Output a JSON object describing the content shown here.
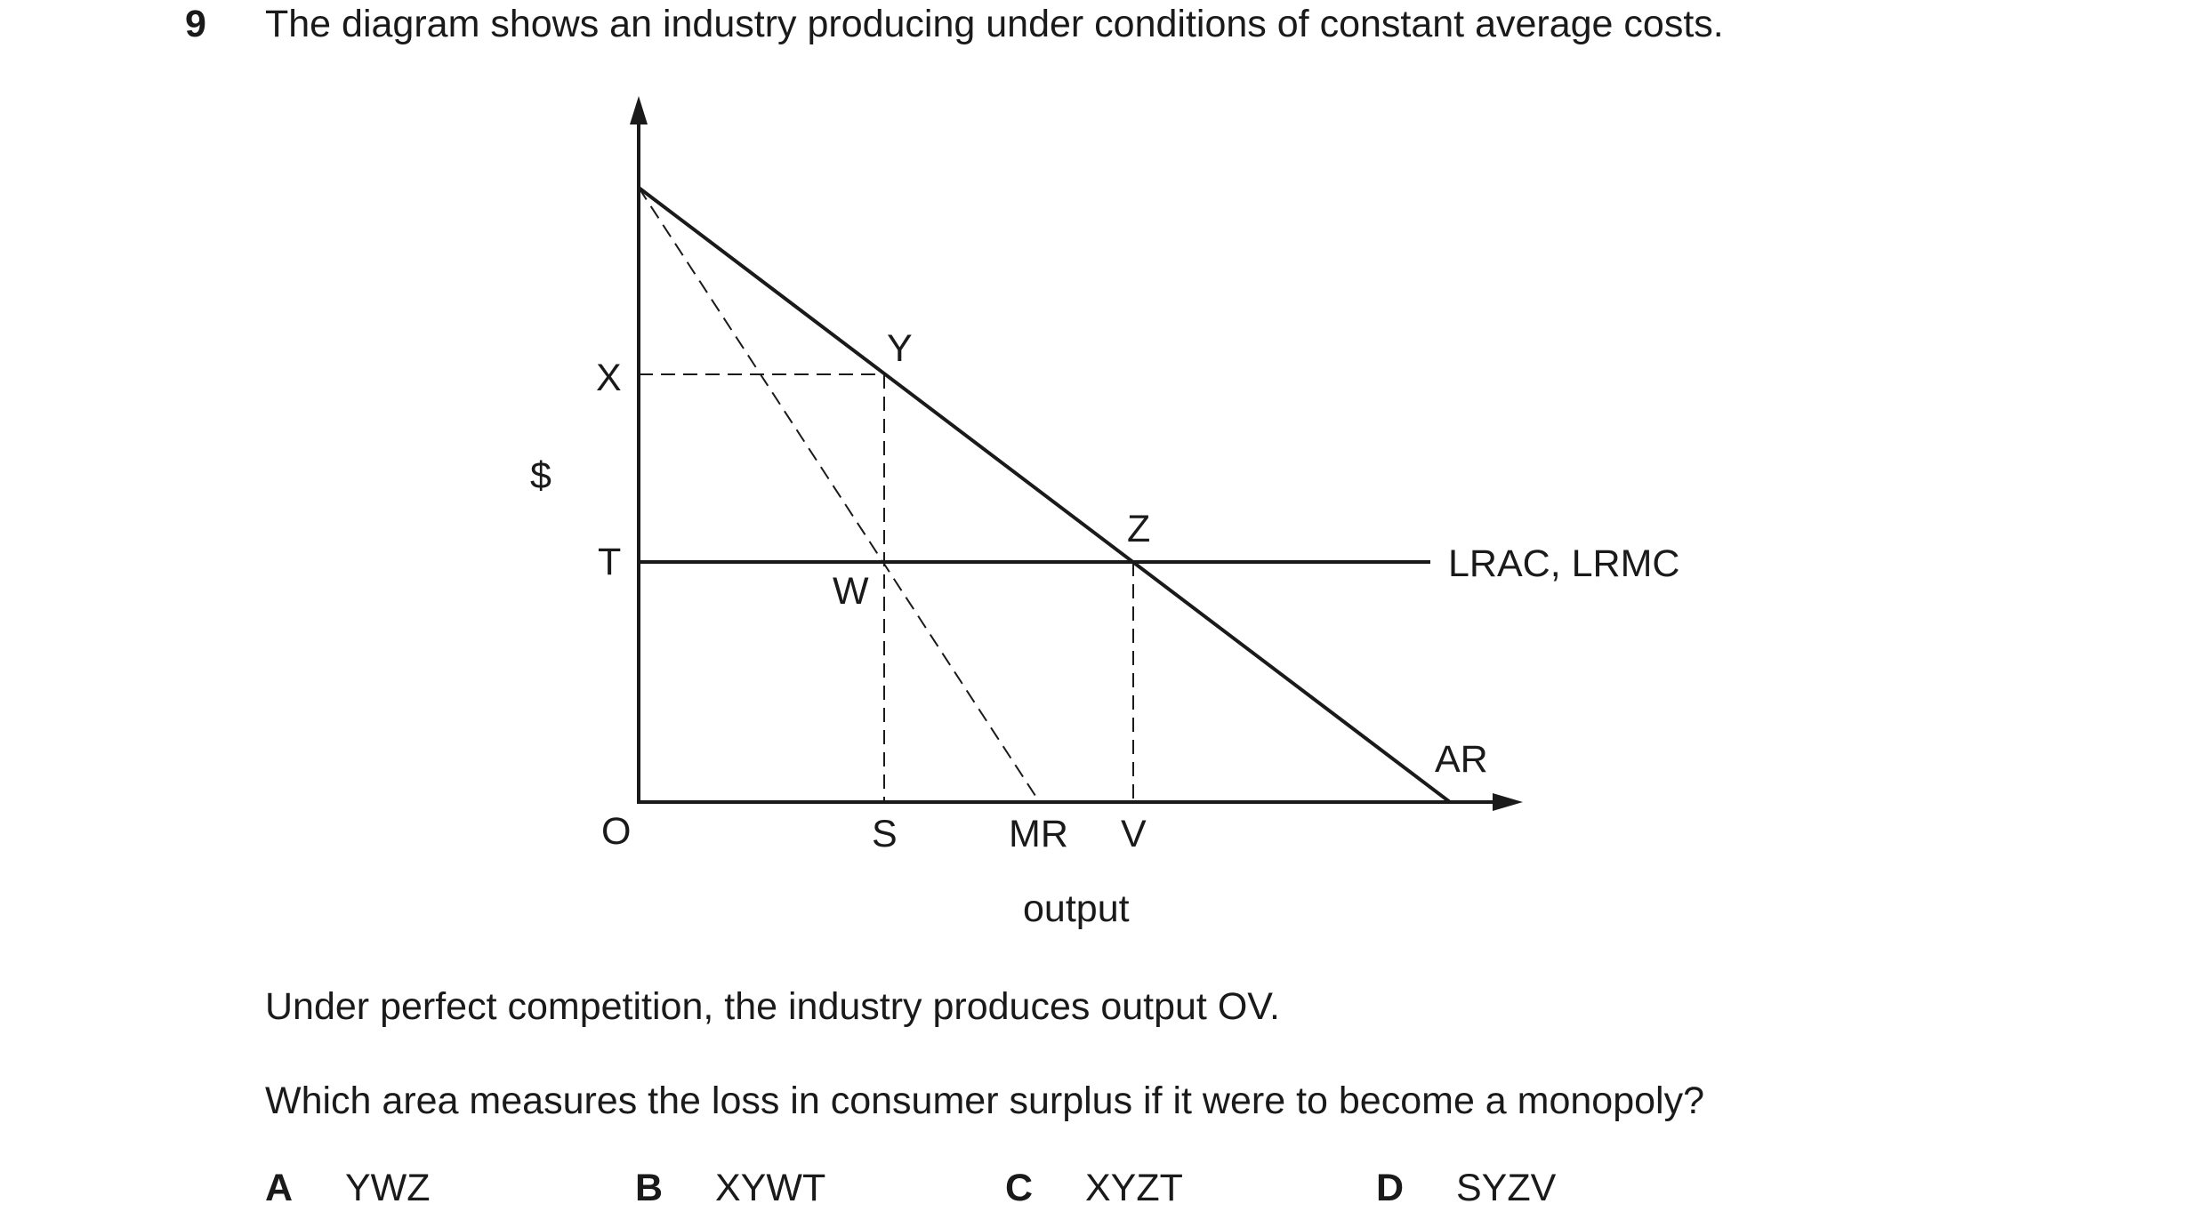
{
  "question": {
    "number": "9",
    "stem": "The diagram shows an industry producing under conditions of constant average costs.",
    "statement": "Under perfect competition, the industry produces output OV.",
    "prompt": "Which area measures the loss in consumer surplus if it were to become a monopoly?"
  },
  "diagram": {
    "y_axis_label": "$",
    "x_axis_label": "output",
    "origin_label": "O",
    "price_labels": {
      "x": "X",
      "t": "T"
    },
    "quantity_labels": {
      "s": "S",
      "mr": "MR",
      "v": "V"
    },
    "point_labels": {
      "y": "Y",
      "w": "W",
      "z": "Z"
    },
    "curve_labels": {
      "lrac_lrmc": "LRAC, LRMC",
      "ar": "AR"
    }
  },
  "options": [
    {
      "letter": "A",
      "text": "YWZ"
    },
    {
      "letter": "B",
      "text": "XYWT"
    },
    {
      "letter": "C",
      "text": "XYZT"
    },
    {
      "letter": "D",
      "text": "SYZV"
    }
  ]
}
